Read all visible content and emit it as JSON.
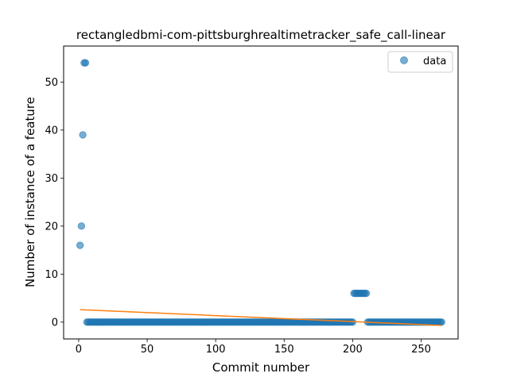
{
  "chart_data": {
    "type": "scatter",
    "title": "rectangledbmi-com-pittsburghrealtimetracker_safe_call-linear",
    "xlabel": "Commit number",
    "ylabel": "Number of instance of a feature",
    "xlim": [
      -11,
      277
    ],
    "ylim": [
      -3.5,
      57.5
    ],
    "xticks": [
      0,
      50,
      100,
      150,
      200,
      250
    ],
    "yticks": [
      0,
      10,
      20,
      30,
      40,
      50
    ],
    "grid": false,
    "legend": {
      "position": "upper-right",
      "entries": [
        "data"
      ]
    },
    "series": [
      {
        "name": "data",
        "kind": "scatter",
        "color": "#1f77b4",
        "points_explicit": [
          [
            1,
            16
          ],
          [
            2,
            20
          ],
          [
            3,
            39
          ],
          [
            4,
            54
          ],
          [
            5,
            54
          ]
        ],
        "constant_runs": [
          {
            "x_start": 6,
            "x_end": 200,
            "y": 0
          },
          {
            "x_start": 201,
            "x_end": 210,
            "y": 6
          },
          {
            "x_start": 211,
            "x_end": 265,
            "y": 0
          }
        ]
      },
      {
        "name": "",
        "kind": "line",
        "color": "#ff7f0e",
        "x": [
          1,
          265
        ],
        "y": [
          2.6,
          -0.7
        ]
      }
    ]
  }
}
